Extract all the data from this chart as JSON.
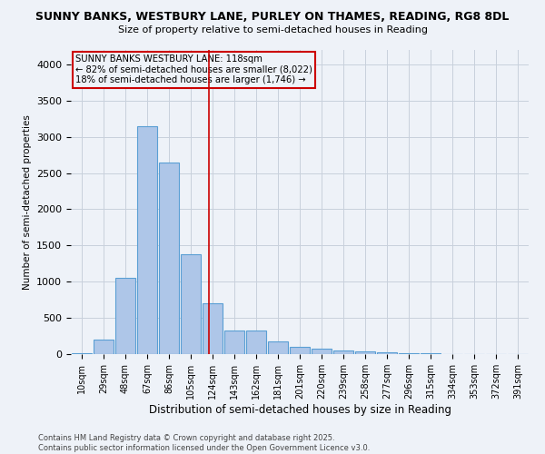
{
  "title": "SUNNY BANKS, WESTBURY LANE, PURLEY ON THAMES, READING, RG8 8DL",
  "subtitle": "Size of property relative to semi-detached houses in Reading",
  "xlabel": "Distribution of semi-detached houses by size in Reading",
  "ylabel": "Number of semi-detached properties",
  "bin_labels": [
    "10sqm",
    "29sqm",
    "48sqm",
    "67sqm",
    "86sqm",
    "105sqm",
    "124sqm",
    "143sqm",
    "162sqm",
    "181sqm",
    "201sqm",
    "220sqm",
    "239sqm",
    "258sqm",
    "277sqm",
    "296sqm",
    "315sqm",
    "334sqm",
    "353sqm",
    "372sqm",
    "391sqm"
  ],
  "bar_heights": [
    10,
    200,
    1050,
    3150,
    2650,
    1375,
    700,
    325,
    325,
    175,
    100,
    75,
    50,
    35,
    25,
    15,
    8,
    5,
    3,
    2,
    0
  ],
  "bar_color": "#aec6e8",
  "bar_edge_color": "#5a9fd4",
  "property_line_x": 5.82,
  "property_line_color": "#cc0000",
  "annotation_text": "SUNNY BANKS WESTBURY LANE: 118sqm\n← 82% of semi-detached houses are smaller (8,022)\n18% of semi-detached houses are larger (1,746) →",
  "annotation_box_color": "#cc0000",
  "footnote": "Contains HM Land Registry data © Crown copyright and database right 2025.\nContains public sector information licensed under the Open Government Licence v3.0.",
  "ylim": [
    0,
    4200
  ],
  "background_color": "#eef2f8",
  "grid_color": "#c8d0dc"
}
